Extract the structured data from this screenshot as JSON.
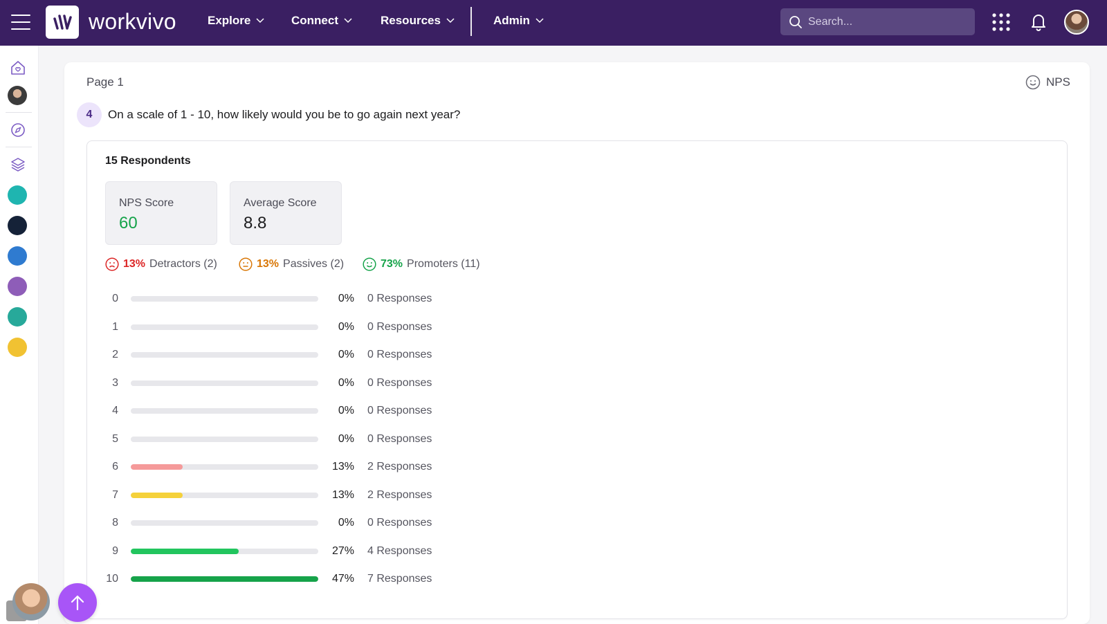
{
  "topbar": {
    "brand": "workvivo",
    "nav": [
      {
        "label": "Explore"
      },
      {
        "label": "Connect"
      },
      {
        "label": "Resources"
      },
      {
        "label": "Admin"
      }
    ],
    "search_placeholder": "Search..."
  },
  "survey": {
    "page_label": "Page 1",
    "question_type": "NPS",
    "question_number": "4",
    "question_text": "On a scale of 1 - 10, how likely would you be to go again next year?",
    "respondents": "15 Respondents",
    "nps_score_label": "NPS Score",
    "nps_score_value": "60",
    "average_score_label": "Average Score",
    "average_score_value": "8.8",
    "legend": {
      "detractors_pct": "13%",
      "detractors_label": "Detractors (2)",
      "passives_pct": "13%",
      "passives_label": "Passives (2)",
      "promoters_pct": "73%",
      "promoters_label": "Promoters (11)"
    }
  },
  "colors": {
    "nav_bg": "#3a1f62",
    "detractor": "#dc2626",
    "passive": "#d97706",
    "promoter": "#16a34a",
    "bar_detractor": "#f59a9a",
    "bar_passive": "#f5d13a",
    "bar_promoter_light": "#22c55e",
    "bar_promoter": "#16a34a",
    "accent": "#a855f7"
  },
  "chart_data": {
    "type": "bar",
    "categories": [
      "0",
      "1",
      "2",
      "3",
      "4",
      "5",
      "6",
      "7",
      "8",
      "9",
      "10"
    ],
    "values": [
      0,
      0,
      0,
      0,
      0,
      0,
      13,
      13,
      0,
      27,
      47
    ],
    "percent_labels": [
      "0%",
      "0%",
      "0%",
      "0%",
      "0%",
      "0%",
      "13%",
      "13%",
      "0%",
      "27%",
      "47%"
    ],
    "response_labels": [
      "0 Responses",
      "0 Responses",
      "0 Responses",
      "0 Responses",
      "0 Responses",
      "0 Responses",
      "2 Responses",
      "2 Responses",
      "0 Responses",
      "4 Responses",
      "7 Responses"
    ],
    "bar_colors": [
      "#e7e7eb",
      "#e7e7eb",
      "#e7e7eb",
      "#e7e7eb",
      "#e7e7eb",
      "#e7e7eb",
      "#f59a9a",
      "#f5d13a",
      "#e7e7eb",
      "#22c55e",
      "#16a34a"
    ],
    "xlim": [
      0,
      47
    ],
    "orientation": "horizontal"
  }
}
